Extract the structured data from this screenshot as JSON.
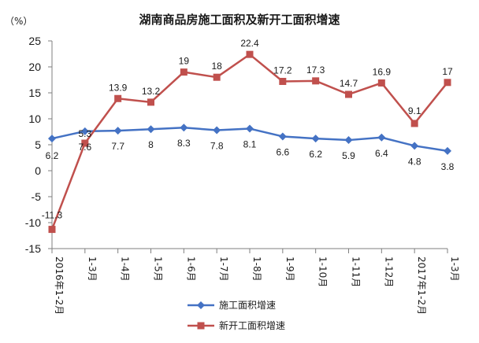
{
  "chart_data": {
    "type": "line",
    "title": "湖南商品房施工面积及新开工面积增速",
    "unit": "（%）",
    "categories": [
      "2016年1-2月",
      "1-3月",
      "1-4月",
      "1-5月",
      "1-6月",
      "1-7月",
      "1-8月",
      "1-9月",
      "1-10月",
      "1-11月",
      "1-12月",
      "2017年1-2月",
      "1-3月"
    ],
    "ylim": [
      -15,
      25
    ],
    "yticks": [
      25,
      20,
      15,
      10,
      5,
      0,
      -5,
      -10,
      -15
    ],
    "grid": false,
    "legend_position": "bottom",
    "series": [
      {
        "name": "施工面积增速",
        "color": "#4472c4",
        "marker": "diamond",
        "values": [
          6.2,
          7.6,
          7.7,
          8,
          8.3,
          7.8,
          8.1,
          6.6,
          6.2,
          5.9,
          6.4,
          4.8,
          3.8
        ],
        "labels": [
          "6.2",
          "7.6",
          "7.7",
          "8",
          "8.3",
          "7.8",
          "8.1",
          "6.6",
          "6.2",
          "5.9",
          "6.4",
          "4.8",
          "3.8"
        ]
      },
      {
        "name": "新开工面积增速",
        "color": "#c0504d",
        "marker": "square",
        "values": [
          -11.3,
          5.3,
          13.9,
          13.2,
          19,
          18,
          22.4,
          17.2,
          17.3,
          14.7,
          16.9,
          9.1,
          17
        ],
        "labels": [
          "-11.3",
          "5.3",
          "13.9",
          "13.2",
          "19",
          "18",
          "22.4",
          "17.2",
          "17.3",
          "14.7",
          "16.9",
          "9.1",
          "17"
        ]
      }
    ]
  }
}
